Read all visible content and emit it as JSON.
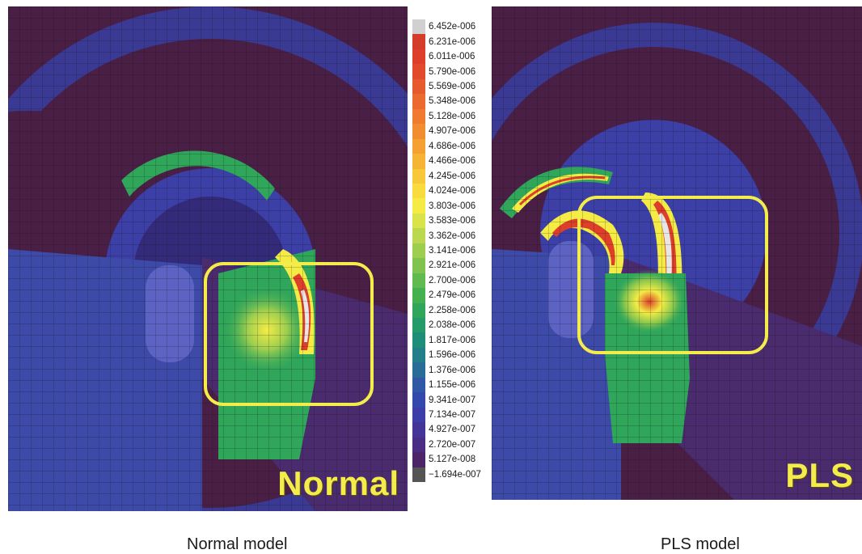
{
  "panels": [
    {
      "id": "normal",
      "label": "Normal",
      "caption": "Normal model"
    },
    {
      "id": "pls",
      "label": "PLS",
      "caption": "PLS model"
    }
  ],
  "colorbar": {
    "labels": [
      "6.452e-006",
      "6.231e-006",
      "6.011e-006",
      "5.790e-006",
      "5.569e-006",
      "5.348e-006",
      "5.128e-006",
      "4.907e-006",
      "4.686e-006",
      "4.466e-006",
      "4.245e-006",
      "4.024e-006",
      "3.803e-006",
      "3.583e-006",
      "3.362e-006",
      "3.141e-006",
      "2.921e-006",
      "2.700e-006",
      "2.479e-006",
      "2.258e-006",
      "2.038e-006",
      "1.817e-006",
      "1.596e-006",
      "1.376e-006",
      "1.155e-006",
      "9.341e-007",
      "7.134e-007",
      "4.927e-007",
      "2.720e-007",
      "5.127e-008",
      "−1.694e-007"
    ],
    "colors": [
      "#d0d0d0",
      "#d43d2a",
      "#dd3f2b",
      "#e24a2c",
      "#e65a2e",
      "#ea6a2f",
      "#ef7a30",
      "#f28c31",
      "#f5a033",
      "#f6b436",
      "#f8c83a",
      "#f8dc3d",
      "#f4ec44",
      "#d9e44a",
      "#bbd84e",
      "#9ece4f",
      "#80c44f",
      "#61ba4f",
      "#45b04f",
      "#2fa65a",
      "#249c6a",
      "#1f8e78",
      "#227e88",
      "#2a6c98",
      "#3058a4",
      "#3448ac",
      "#3c3da8",
      "#433498",
      "#4a2c84",
      "#4e2468",
      "#555555"
    ]
  },
  "colors": {
    "background_mesh": "#4a1f45",
    "highlight_box": "#f4ec4a"
  }
}
